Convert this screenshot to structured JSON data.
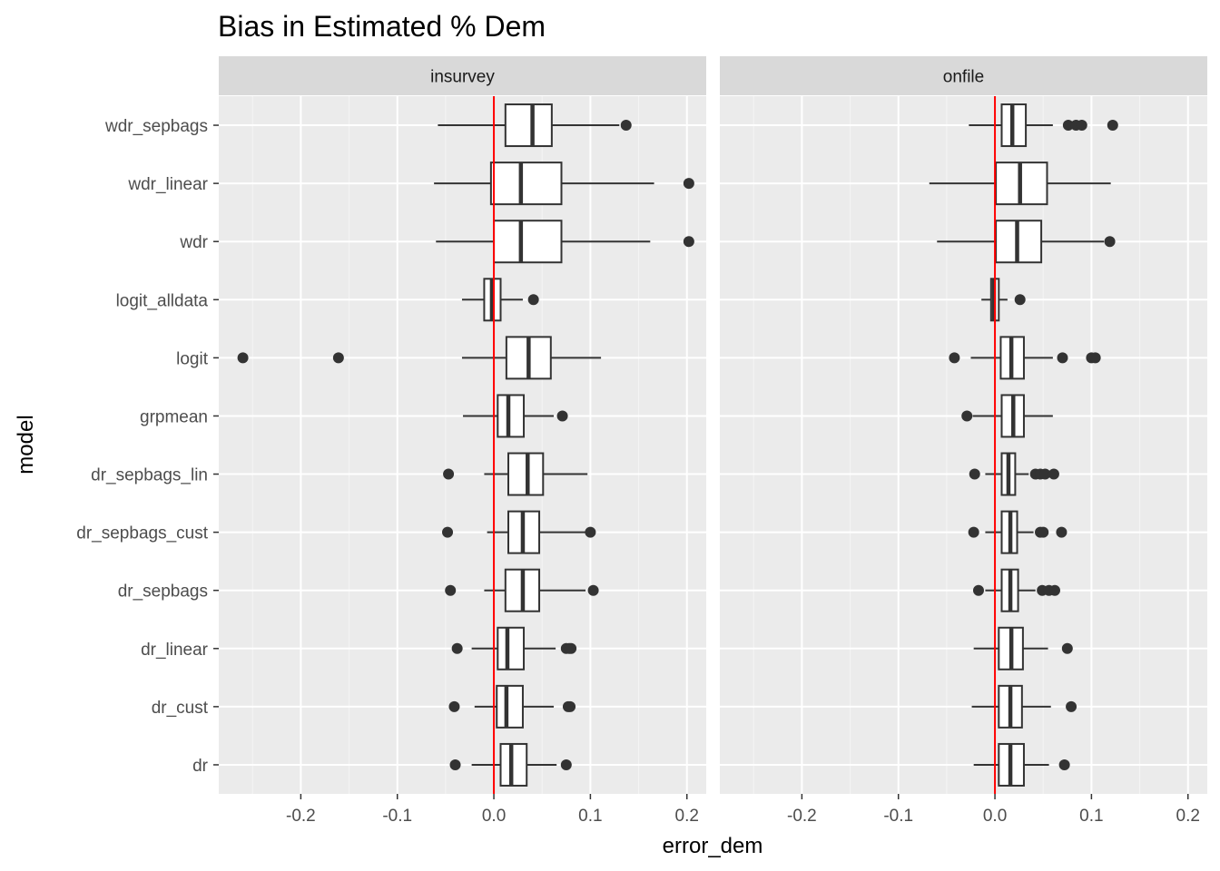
{
  "chart_data": {
    "type": "boxplot",
    "title": "Bias in Estimated % Dem",
    "xlabel": "error_dem",
    "ylabel": "model",
    "xlim": [
      -0.285,
      0.22
    ],
    "x_ticks": [
      -0.2,
      -0.1,
      0.0,
      0.1,
      0.2
    ],
    "x_tick_labels": [
      "-0.2",
      "-0.1",
      "0.0",
      "0.1",
      "0.2"
    ],
    "reference_line": {
      "x": 0.0,
      "color": "#ff0000"
    },
    "categories": [
      "wdr_sepbags",
      "wdr_linear",
      "wdr",
      "logit_alldata",
      "logit",
      "grpmean",
      "dr_sepbags_lin",
      "dr_sepbags_cust",
      "dr_sepbags",
      "dr_linear",
      "dr_cust",
      "dr"
    ],
    "grid": true,
    "colors": {
      "panel_bg": "#ebebeb",
      "strip_bg": "#d9d9d9",
      "box_fill": "#ffffff",
      "box_line": "#333333",
      "outlier": "#333333"
    },
    "panels": [
      {
        "label": "insurvey",
        "boxes": [
          {
            "category": "wdr_sepbags",
            "whisker_low": -0.058,
            "q1": 0.012,
            "median": 0.04,
            "q3": 0.06,
            "whisker_high": 0.13,
            "outliers": [
              0.137
            ]
          },
          {
            "category": "wdr_linear",
            "whisker_low": -0.062,
            "q1": -0.003,
            "median": 0.028,
            "q3": 0.07,
            "whisker_high": 0.166,
            "outliers": [
              0.202
            ]
          },
          {
            "category": "wdr",
            "whisker_low": -0.06,
            "q1": 0.0,
            "median": 0.028,
            "q3": 0.07,
            "whisker_high": 0.162,
            "outliers": [
              0.202
            ]
          },
          {
            "category": "logit_alldata",
            "whisker_low": -0.033,
            "q1": -0.01,
            "median": -0.002,
            "q3": 0.007,
            "whisker_high": 0.03,
            "outliers": [
              0.041
            ]
          },
          {
            "category": "logit",
            "whisker_low": -0.033,
            "q1": 0.013,
            "median": 0.036,
            "q3": 0.059,
            "whisker_high": 0.111,
            "outliers": [
              -0.26,
              -0.161
            ]
          },
          {
            "category": "grpmean",
            "whisker_low": -0.032,
            "q1": 0.004,
            "median": 0.015,
            "q3": 0.031,
            "whisker_high": 0.062,
            "outliers": [
              0.071
            ]
          },
          {
            "category": "dr_sepbags_lin",
            "whisker_low": -0.01,
            "q1": 0.015,
            "median": 0.035,
            "q3": 0.051,
            "whisker_high": 0.097,
            "outliers": [
              -0.047
            ]
          },
          {
            "category": "dr_sepbags_cust",
            "whisker_low": -0.007,
            "q1": 0.015,
            "median": 0.03,
            "q3": 0.047,
            "whisker_high": 0.095,
            "outliers": [
              -0.048,
              0.1
            ]
          },
          {
            "category": "dr_sepbags",
            "whisker_low": -0.01,
            "q1": 0.012,
            "median": 0.03,
            "q3": 0.047,
            "whisker_high": 0.095,
            "outliers": [
              -0.045,
              0.103
            ]
          },
          {
            "category": "dr_linear",
            "whisker_low": -0.023,
            "q1": 0.004,
            "median": 0.014,
            "q3": 0.031,
            "whisker_high": 0.064,
            "outliers": [
              -0.038,
              0.075,
              0.078,
              0.08
            ]
          },
          {
            "category": "dr_cust",
            "whisker_low": -0.02,
            "q1": 0.003,
            "median": 0.013,
            "q3": 0.03,
            "whisker_high": 0.062,
            "outliers": [
              -0.041,
              0.077,
              0.079
            ]
          },
          {
            "category": "dr",
            "whisker_low": -0.023,
            "q1": 0.007,
            "median": 0.018,
            "q3": 0.034,
            "whisker_high": 0.065,
            "outliers": [
              -0.04,
              0.075
            ]
          }
        ]
      },
      {
        "label": "onfile",
        "boxes": [
          {
            "category": "wdr_sepbags",
            "whisker_low": -0.027,
            "q1": 0.007,
            "median": 0.018,
            "q3": 0.032,
            "whisker_high": 0.06,
            "outliers": [
              0.076,
              0.084,
              0.09,
              0.122
            ]
          },
          {
            "category": "wdr_linear",
            "whisker_low": -0.068,
            "q1": 0.001,
            "median": 0.026,
            "q3": 0.054,
            "whisker_high": 0.12,
            "outliers": []
          },
          {
            "category": "wdr",
            "whisker_low": -0.06,
            "q1": 0.001,
            "median": 0.023,
            "q3": 0.048,
            "whisker_high": 0.113,
            "outliers": [
              0.119
            ]
          },
          {
            "category": "logit_alldata",
            "whisker_low": -0.014,
            "q1": -0.004,
            "median": -0.001,
            "q3": 0.004,
            "whisker_high": 0.013,
            "outliers": [
              0.026
            ]
          },
          {
            "category": "logit",
            "whisker_low": -0.025,
            "q1": 0.006,
            "median": 0.017,
            "q3": 0.03,
            "whisker_high": 0.06,
            "outliers": [
              -0.042,
              0.07,
              0.1,
              0.104
            ]
          },
          {
            "category": "grpmean",
            "whisker_low": -0.023,
            "q1": 0.007,
            "median": 0.019,
            "q3": 0.03,
            "whisker_high": 0.06,
            "outliers": [
              -0.029
            ]
          },
          {
            "category": "dr_sepbags_lin",
            "whisker_low": -0.01,
            "q1": 0.007,
            "median": 0.014,
            "q3": 0.021,
            "whisker_high": 0.035,
            "outliers": [
              -0.021,
              0.042,
              0.047,
              0.052,
              0.061
            ]
          },
          {
            "category": "dr_sepbags_cust",
            "whisker_low": -0.01,
            "q1": 0.007,
            "median": 0.016,
            "q3": 0.023,
            "whisker_high": 0.04,
            "outliers": [
              -0.022,
              0.047,
              0.05,
              0.069
            ]
          },
          {
            "category": "dr_sepbags",
            "whisker_low": -0.01,
            "q1": 0.007,
            "median": 0.016,
            "q3": 0.024,
            "whisker_high": 0.042,
            "outliers": [
              -0.017,
              0.049,
              0.056,
              0.062
            ]
          },
          {
            "category": "dr_linear",
            "whisker_low": -0.022,
            "q1": 0.004,
            "median": 0.017,
            "q3": 0.029,
            "whisker_high": 0.055,
            "outliers": [
              0.075
            ]
          },
          {
            "category": "dr_cust",
            "whisker_low": -0.024,
            "q1": 0.004,
            "median": 0.016,
            "q3": 0.028,
            "whisker_high": 0.058,
            "outliers": [
              0.079
            ]
          },
          {
            "category": "dr",
            "whisker_low": -0.022,
            "q1": 0.004,
            "median": 0.016,
            "q3": 0.03,
            "whisker_high": 0.056,
            "outliers": [
              0.072
            ]
          }
        ]
      }
    ]
  }
}
